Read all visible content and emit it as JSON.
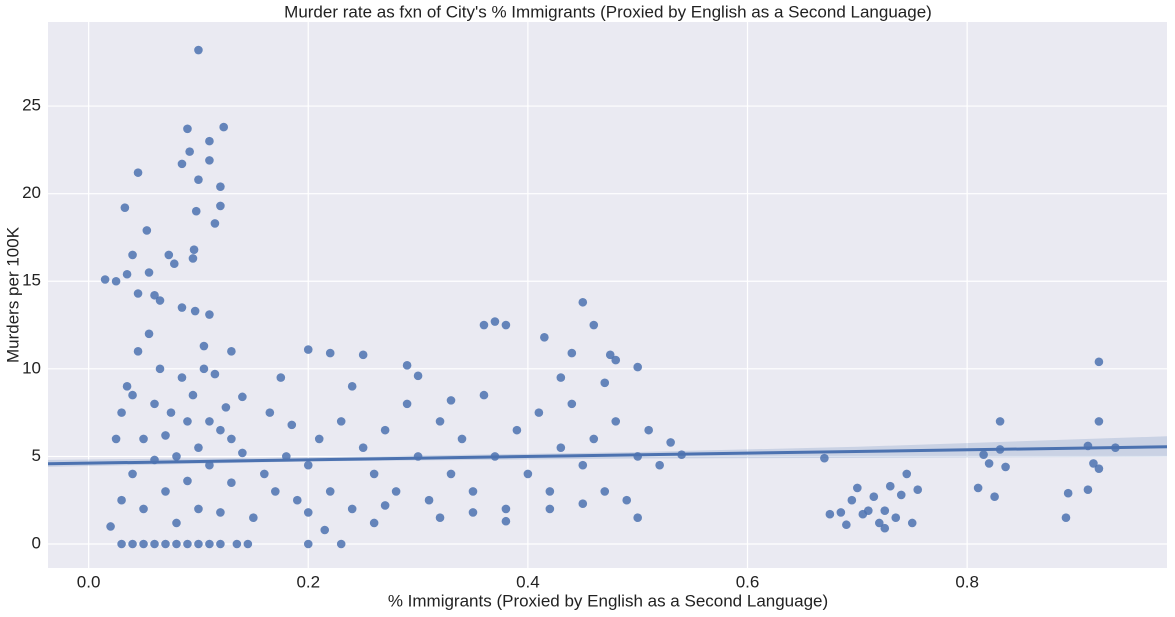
{
  "chart_data": {
    "type": "scatter",
    "title": "Murder rate as fxn of City's % Immigrants (Proxied by English as a Second Language)",
    "xlabel": "% Immigrants (Proxied by English as a Second Language)",
    "ylabel": "Murders per 100K",
    "color": "#4c72b0",
    "background": "#eaeaf2",
    "grid": true,
    "xlim": [
      -0.037,
      0.982
    ],
    "ylim": [
      -1.37,
      29.8
    ],
    "xticks": [
      {
        "value": 0,
        "label": "0.0"
      },
      0.2,
      0.4,
      0.6,
      0.8
    ],
    "yticks": [
      0,
      5,
      10,
      15,
      20,
      25
    ],
    "x": [
      0.1,
      0.09,
      0.123,
      0.11,
      0.092,
      0.085,
      0.045,
      0.1,
      0.12,
      0.11,
      0.033,
      0.098,
      0.12,
      0.115,
      0.053,
      0.096,
      0.073,
      0.04,
      0.078,
      0.095,
      0.015,
      0.025,
      0.035,
      0.055,
      0.045,
      0.06,
      0.065,
      0.085,
      0.097,
      0.11,
      0.45,
      0.46,
      0.36,
      0.37,
      0.38,
      0.415,
      0.2,
      0.22,
      0.25,
      0.29,
      0.44,
      0.475,
      0.48,
      0.5,
      0.92,
      0.13,
      0.105,
      0.02,
      0.03,
      0.04,
      0.05,
      0.06,
      0.07,
      0.08,
      0.09,
      0.1,
      0.11,
      0.12,
      0.135,
      0.145,
      0.03,
      0.04,
      0.05,
      0.06,
      0.07,
      0.08,
      0.09,
      0.1,
      0.11,
      0.12,
      0.13,
      0.14,
      0.15,
      0.035,
      0.045,
      0.055,
      0.065,
      0.075,
      0.085,
      0.095,
      0.105,
      0.115,
      0.125,
      0.14,
      0.025,
      0.03,
      0.04,
      0.05,
      0.06,
      0.07,
      0.08,
      0.09,
      0.1,
      0.11,
      0.12,
      0.13,
      0.16,
      0.17,
      0.18,
      0.19,
      0.2,
      0.21,
      0.22,
      0.23,
      0.24,
      0.25,
      0.26,
      0.27,
      0.28,
      0.29,
      0.3,
      0.31,
      0.32,
      0.33,
      0.34,
      0.35,
      0.36,
      0.37,
      0.38,
      0.39,
      0.4,
      0.41,
      0.42,
      0.43,
      0.44,
      0.45,
      0.46,
      0.47,
      0.48,
      0.49,
      0.5,
      0.51,
      0.52,
      0.53,
      0.54,
      0.2,
      0.23,
      0.215,
      0.165,
      0.175,
      0.185,
      0.3,
      0.32,
      0.33,
      0.24,
      0.26,
      0.35,
      0.38,
      0.42,
      0.45,
      0.5,
      0.47,
      0.43,
      0.2,
      0.27,
      0.67,
      0.675,
      0.685,
      0.69,
      0.695,
      0.7,
      0.705,
      0.715,
      0.72,
      0.725,
      0.73,
      0.735,
      0.74,
      0.745,
      0.75,
      0.755,
      0.71,
      0.725,
      0.81,
      0.815,
      0.82,
      0.825,
      0.83,
      0.83,
      0.835,
      0.89,
      0.892,
      0.91,
      0.91,
      0.915,
      0.92,
      0.92,
      0.935
    ],
    "values": [
      28.2,
      23.7,
      23.8,
      23.0,
      22.4,
      21.7,
      21.2,
      20.8,
      20.4,
      21.9,
      19.2,
      19.0,
      19.3,
      18.3,
      17.9,
      16.8,
      16.5,
      16.5,
      16.0,
      16.3,
      15.1,
      15.0,
      15.4,
      15.5,
      14.3,
      14.2,
      13.9,
      13.5,
      13.3,
      13.1,
      13.8,
      12.5,
      12.5,
      12.7,
      12.5,
      11.8,
      11.1,
      10.9,
      10.8,
      10.2,
      10.9,
      10.8,
      10.5,
      10.1,
      10.4,
      11.0,
      11.3,
      1.0,
      0,
      0,
      0,
      0,
      0,
      0,
      0,
      0,
      0,
      0,
      0,
      0,
      2.5,
      4,
      6,
      8,
      3,
      5,
      7,
      2,
      4.5,
      6.5,
      3.5,
      5.2,
      1.5,
      9,
      11,
      12,
      10,
      7.5,
      9.5,
      8.5,
      10,
      9.7,
      7.8,
      8.4,
      6,
      7.5,
      8.5,
      2,
      4.8,
      6.2,
      1.2,
      3.6,
      5.5,
      7,
      1.8,
      6,
      4,
      3,
      5,
      2.5,
      4.5,
      6,
      3,
      7,
      2,
      5.5,
      4,
      6.5,
      3,
      8,
      5,
      2.5,
      7,
      4,
      6,
      3,
      8.5,
      5,
      2,
      6.5,
      4,
      7.5,
      3,
      5.5,
      8,
      4.5,
      6,
      3,
      7,
      2.5,
      5,
      6.5,
      4.5,
      5.8,
      5.1,
      0,
      0,
      0.8,
      7.5,
      9.5,
      6.8,
      9.6,
      1.5,
      8.2,
      9,
      1.2,
      1.8,
      1.3,
      2.0,
      2.3,
      1.5,
      9.2,
      9.5,
      1.8,
      2.2,
      4.9,
      1.7,
      1.8,
      1.1,
      2.5,
      3.2,
      1.7,
      2.7,
      1.2,
      1.9,
      3.3,
      1.5,
      2.8,
      4.0,
      1.2,
      3.1,
      1.9,
      0.9,
      3.2,
      5.1,
      4.6,
      2.7,
      7.0,
      5.4,
      4.4,
      1.5,
      2.9,
      3.1,
      5.6,
      4.6,
      7.0,
      4.3,
      5.5
    ],
    "fit": {
      "x": [
        -0.037,
        0.982
      ],
      "values": [
        4.58,
        5.55
      ]
    },
    "fit_band": {
      "x": [
        -0.037,
        0.2,
        0.5,
        0.7,
        0.982
      ],
      "lower": [
        4.4,
        4.72,
        4.88,
        4.92,
        4.98
      ],
      "upper": [
        4.8,
        4.95,
        5.25,
        5.55,
        6.15
      ]
    }
  }
}
